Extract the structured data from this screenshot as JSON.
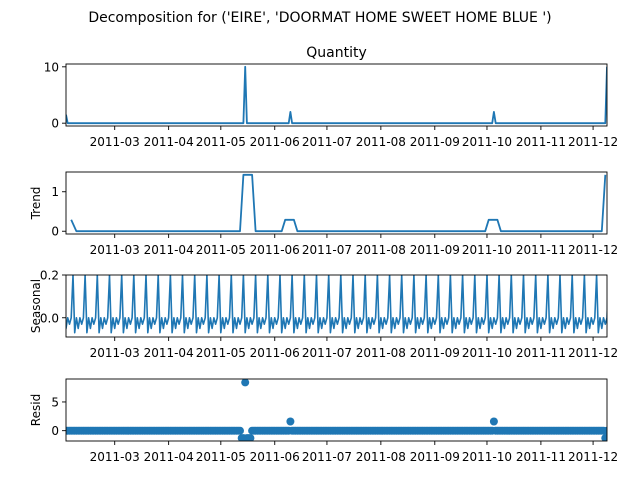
{
  "figure": {
    "suptitle": "Decomposition for ('EIRE', 'DOORMAT HOME SWEET HOME BLUE ')",
    "line_color": "#1f77b4"
  },
  "chart_data": [
    {
      "type": "line",
      "title": "Quantity",
      "ylabel": "",
      "xlim": [
        "2011-02-01",
        "2011-12-09"
      ],
      "ylim": [
        -0.5,
        10.5
      ],
      "yticks": [
        0,
        10
      ],
      "xtick_labels": [
        "2011-03",
        "2011-04",
        "2011-05",
        "2011-06",
        "2011-07",
        "2011-08",
        "2011-09",
        "2011-10",
        "2011-11",
        "2011-12"
      ],
      "baseline": 0,
      "spikes": [
        {
          "x": "2011-02-01",
          "y": 1.5
        },
        {
          "x": "2011-05-15",
          "y": 10
        },
        {
          "x": "2011-06-10",
          "y": 2
        },
        {
          "x": "2011-10-05",
          "y": 2
        },
        {
          "x": "2011-12-09",
          "y": 10
        }
      ]
    },
    {
      "type": "line",
      "title": "",
      "ylabel": "Trend",
      "xlim": [
        "2011-02-01",
        "2011-12-09"
      ],
      "ylim": [
        -0.07,
        1.5
      ],
      "yticks": [
        0,
        1
      ],
      "xtick_labels": [
        "2011-03",
        "2011-04",
        "2011-05",
        "2011-06",
        "2011-07",
        "2011-08",
        "2011-09",
        "2011-10",
        "2011-11",
        "2011-12"
      ],
      "points": [
        {
          "x": "2011-02-04",
          "y": 0.29
        },
        {
          "x": "2011-02-07",
          "y": 0
        },
        {
          "x": "2011-05-12",
          "y": 0
        },
        {
          "x": "2011-05-14",
          "y": 1.43
        },
        {
          "x": "2011-05-19",
          "y": 1.43
        },
        {
          "x": "2011-05-21",
          "y": 0
        },
        {
          "x": "2011-06-05",
          "y": 0
        },
        {
          "x": "2011-06-07",
          "y": 0.29
        },
        {
          "x": "2011-06-12",
          "y": 0.29
        },
        {
          "x": "2011-06-14",
          "y": 0
        },
        {
          "x": "2011-09-30",
          "y": 0
        },
        {
          "x": "2011-10-02",
          "y": 0.29
        },
        {
          "x": "2011-10-07",
          "y": 0.29
        },
        {
          "x": "2011-10-09",
          "y": 0
        },
        {
          "x": "2011-12-06",
          "y": 0
        },
        {
          "x": "2011-12-08",
          "y": 1.43
        }
      ]
    },
    {
      "type": "line",
      "title": "",
      "ylabel": "Seasonal",
      "xlim": [
        "2011-02-01",
        "2011-12-09"
      ],
      "ylim": [
        -0.09,
        0.2
      ],
      "yticks": [
        "0.0",
        "0.2"
      ],
      "xtick_labels": [
        "2011-03",
        "2011-04",
        "2011-05",
        "2011-06",
        "2011-07",
        "2011-08",
        "2011-09",
        "2011-10",
        "2011-11",
        "2011-12"
      ],
      "period_days": 7,
      "weekly_pattern": [
        0.2,
        -0.07,
        0.0,
        -0.05,
        0.0,
        -0.03,
        0.0
      ]
    },
    {
      "type": "scatter",
      "title": "",
      "ylabel": "Resid",
      "xlim": [
        "2011-02-01",
        "2011-12-09"
      ],
      "ylim": [
        -1.8,
        9.0
      ],
      "yticks": [
        0,
        5
      ],
      "xtick_labels": [
        "2011-03",
        "2011-04",
        "2011-05",
        "2011-06",
        "2011-07",
        "2011-08",
        "2011-09",
        "2011-10",
        "2011-11",
        "2011-12"
      ],
      "typical_value": 0,
      "outliers": [
        {
          "x": "2011-05-13",
          "y": -1.3
        },
        {
          "x": "2011-05-14",
          "y": -1.3
        },
        {
          "x": "2011-05-15",
          "y": 8.4
        },
        {
          "x": "2011-05-16",
          "y": -1.3
        },
        {
          "x": "2011-05-17",
          "y": -1.3
        },
        {
          "x": "2011-05-18",
          "y": -1.3
        },
        {
          "x": "2011-06-10",
          "y": 1.6
        },
        {
          "x": "2011-10-05",
          "y": 1.6
        },
        {
          "x": "2011-12-08",
          "y": -1.3
        }
      ]
    }
  ]
}
